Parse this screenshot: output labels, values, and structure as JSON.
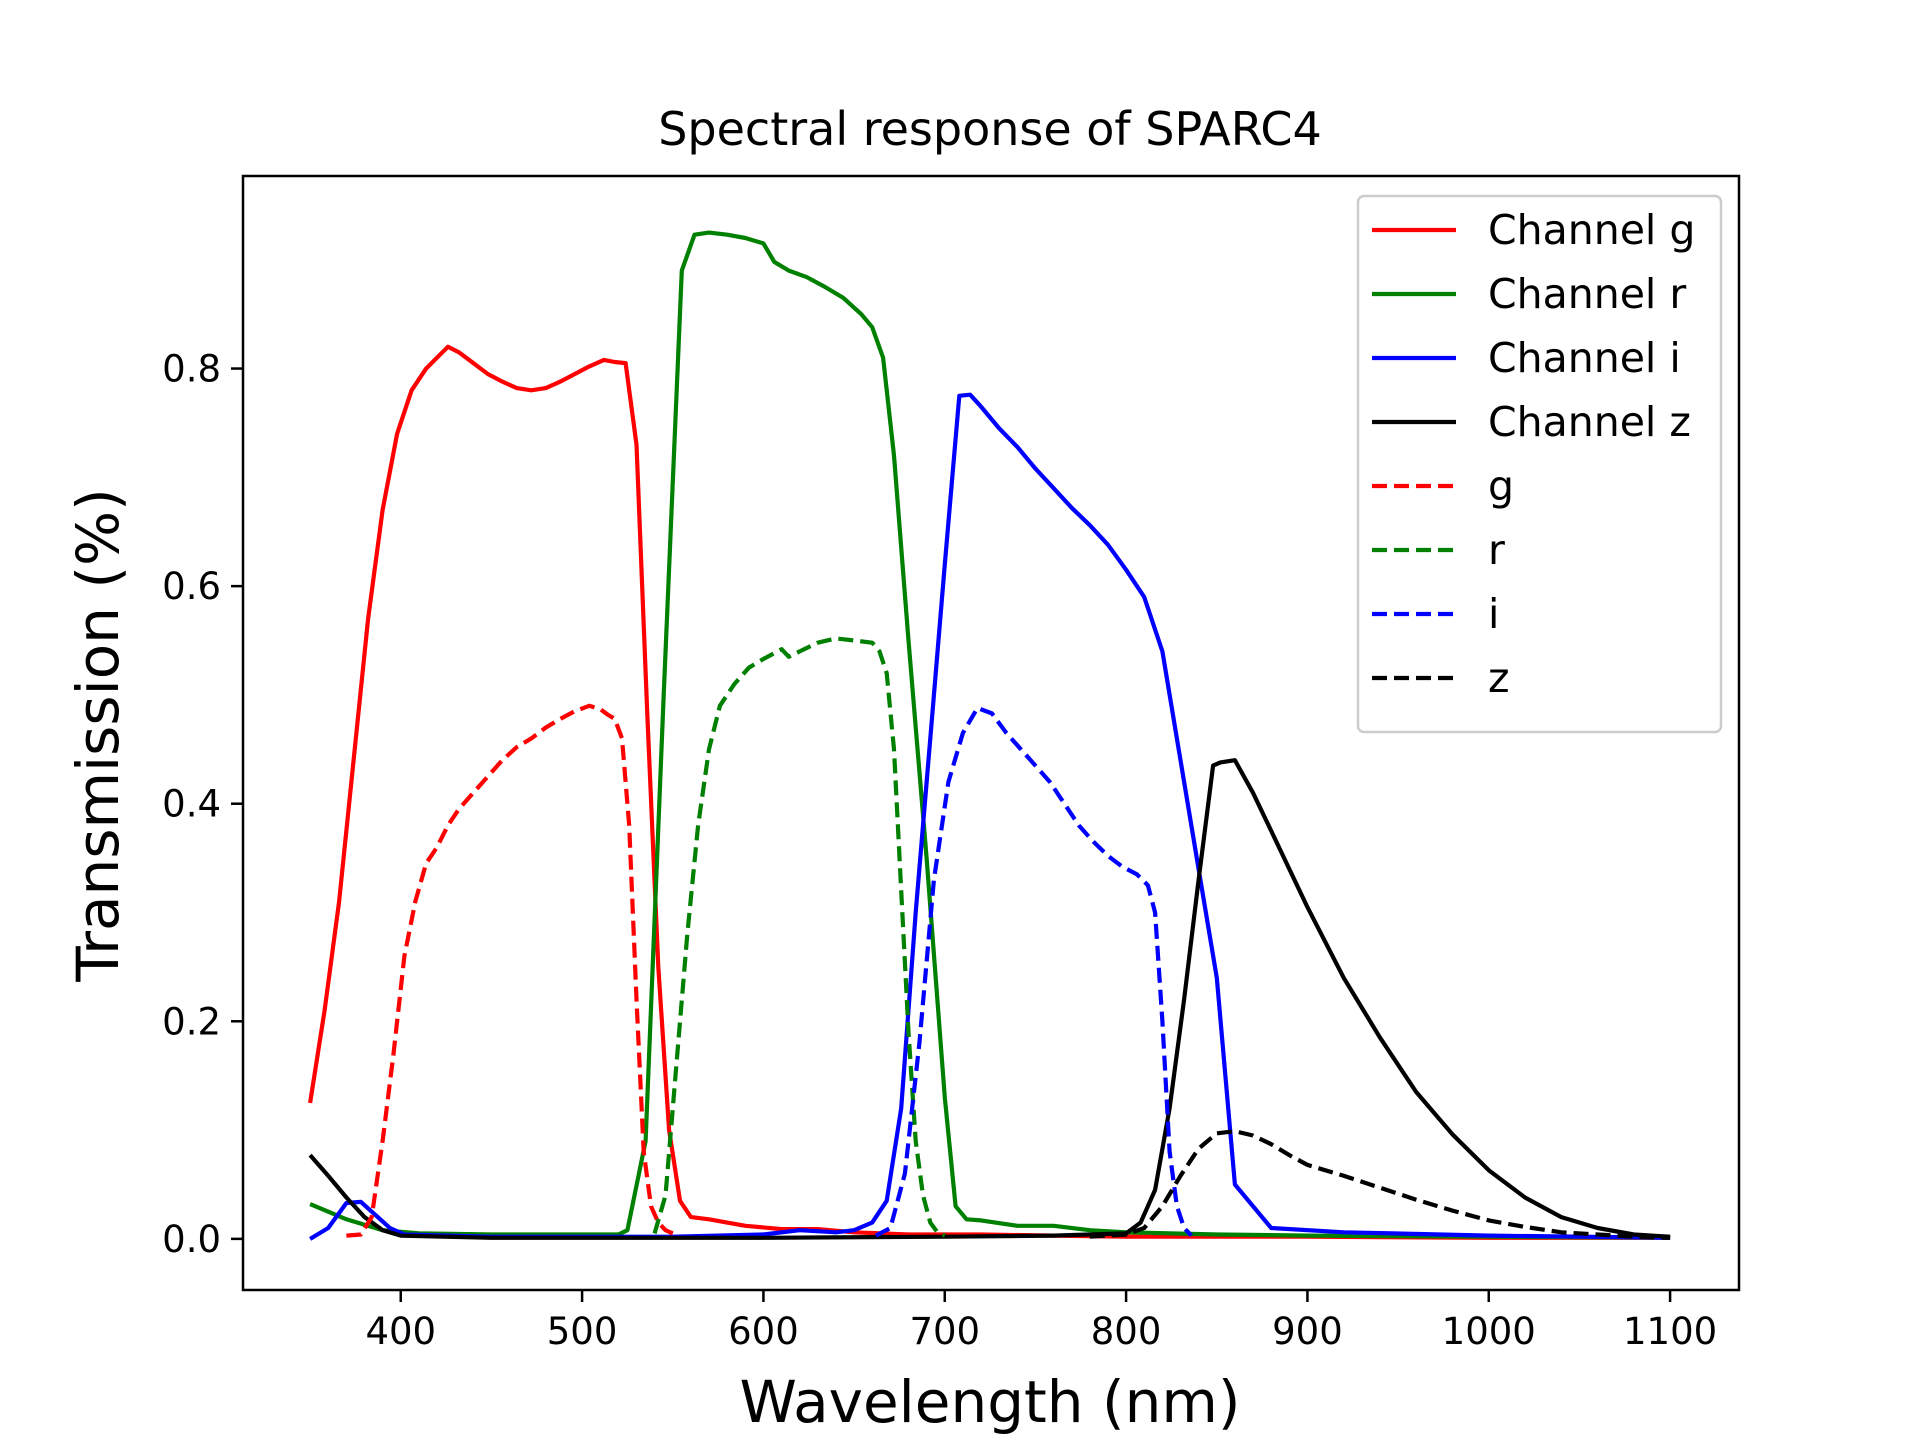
{
  "chart_data": {
    "type": "line",
    "title": "Spectral response of SPARC4",
    "xlabel": "Wavelength (nm)",
    "ylabel": "Transmission (%)",
    "xlim": [
      313,
      1138
    ],
    "ylim": [
      -0.047,
      0.977
    ],
    "xticks": [
      400,
      500,
      600,
      700,
      800,
      900,
      1000,
      1100
    ],
    "yticks": [
      0.0,
      0.2,
      0.4,
      0.6,
      0.8
    ],
    "xtick_labels": [
      "400",
      "500",
      "600",
      "700",
      "800",
      "900",
      "1000",
      "1100"
    ],
    "ytick_labels": [
      "0.0",
      "0.2",
      "0.4",
      "0.6",
      "0.8"
    ],
    "grid": false,
    "legend_position": "top-right",
    "series": [
      {
        "name": "Channel g",
        "color": "#ff0000",
        "style": "solid",
        "x": [
          350,
          358,
          366,
          374,
          382,
          390,
          398,
          406,
          414,
          420,
          426,
          432,
          440,
          448,
          456,
          464,
          472,
          480,
          488,
          496,
          504,
          512,
          518,
          524,
          530,
          536,
          542,
          548,
          554,
          560,
          570,
          590,
          610,
          630,
          650,
          680,
          720,
          760,
          800,
          850,
          900,
          1000,
          1100
        ],
        "y": [
          0.125,
          0.21,
          0.31,
          0.44,
          0.57,
          0.67,
          0.74,
          0.78,
          0.8,
          0.81,
          0.82,
          0.815,
          0.805,
          0.795,
          0.788,
          0.782,
          0.78,
          0.782,
          0.788,
          0.795,
          0.802,
          0.808,
          0.806,
          0.805,
          0.73,
          0.48,
          0.25,
          0.1,
          0.035,
          0.02,
          0.018,
          0.012,
          0.009,
          0.009,
          0.006,
          0.004,
          0.004,
          0.003,
          0.002,
          0.002,
          0.002,
          0.001,
          0.001
        ]
      },
      {
        "name": "Channel r",
        "color": "#008000",
        "style": "solid",
        "x": [
          350,
          370,
          390,
          410,
          450,
          500,
          520,
          525,
          535,
          545,
          555,
          562,
          570,
          580,
          590,
          600,
          606,
          614,
          624,
          634,
          644,
          654,
          660,
          666,
          672,
          680,
          690,
          700,
          706,
          712,
          720,
          740,
          760,
          780,
          800,
          850,
          900,
          1000,
          1100
        ],
        "y": [
          0.032,
          0.018,
          0.008,
          0.005,
          0.004,
          0.004,
          0.004,
          0.008,
          0.09,
          0.5,
          0.89,
          0.923,
          0.925,
          0.923,
          0.92,
          0.915,
          0.898,
          0.89,
          0.884,
          0.875,
          0.865,
          0.85,
          0.838,
          0.81,
          0.72,
          0.55,
          0.35,
          0.13,
          0.03,
          0.018,
          0.017,
          0.012,
          0.012,
          0.008,
          0.006,
          0.004,
          0.003,
          0.002,
          0.001
        ]
      },
      {
        "name": "Channel i",
        "color": "#0000ff",
        "style": "solid",
        "x": [
          350,
          360,
          370,
          378,
          386,
          394,
          402,
          450,
          500,
          550,
          600,
          620,
          640,
          650,
          660,
          668,
          676,
          684,
          692,
          700,
          708,
          714,
          720,
          730,
          740,
          750,
          760,
          770,
          780,
          790,
          800,
          810,
          820,
          830,
          840,
          850,
          860,
          880,
          920,
          1000,
          1100
        ],
        "y": [
          0.0,
          0.01,
          0.033,
          0.034,
          0.022,
          0.01,
          0.004,
          0.002,
          0.002,
          0.002,
          0.004,
          0.008,
          0.006,
          0.008,
          0.015,
          0.035,
          0.12,
          0.3,
          0.46,
          0.62,
          0.775,
          0.776,
          0.765,
          0.745,
          0.728,
          0.708,
          0.69,
          0.672,
          0.656,
          0.638,
          0.615,
          0.59,
          0.54,
          0.44,
          0.34,
          0.24,
          0.05,
          0.01,
          0.006,
          0.003,
          0.001
        ]
      },
      {
        "name": "Channel z",
        "color": "#000000",
        "style": "solid",
        "x": [
          350,
          360,
          370,
          380,
          390,
          400,
          450,
          500,
          600,
          700,
          760,
          800,
          808,
          816,
          824,
          832,
          840,
          848,
          852,
          860,
          870,
          880,
          890,
          900,
          920,
          940,
          960,
          980,
          1000,
          1020,
          1040,
          1060,
          1080,
          1100
        ],
        "y": [
          0.077,
          0.058,
          0.038,
          0.02,
          0.008,
          0.003,
          0.001,
          0.001,
          0.001,
          0.002,
          0.003,
          0.005,
          0.015,
          0.045,
          0.12,
          0.22,
          0.33,
          0.435,
          0.438,
          0.44,
          0.41,
          0.375,
          0.34,
          0.305,
          0.24,
          0.185,
          0.135,
          0.096,
          0.063,
          0.038,
          0.02,
          0.01,
          0.004,
          0.002
        ]
      },
      {
        "name": "g",
        "color": "#ff0000",
        "style": "dashed",
        "x": [
          370,
          378,
          384,
          390,
          396,
          402,
          408,
          414,
          420,
          426,
          432,
          440,
          448,
          456,
          464,
          472,
          480,
          488,
          496,
          504,
          510,
          514,
          518,
          522,
          526,
          530,
          534,
          538,
          542,
          546,
          550
        ],
        "y": [
          0.003,
          0.004,
          0.02,
          0.09,
          0.17,
          0.26,
          0.31,
          0.345,
          0.36,
          0.38,
          0.395,
          0.41,
          0.425,
          0.44,
          0.452,
          0.46,
          0.47,
          0.478,
          0.485,
          0.49,
          0.487,
          0.482,
          0.478,
          0.46,
          0.38,
          0.22,
          0.08,
          0.03,
          0.015,
          0.008,
          0.005
        ]
      },
      {
        "name": "r",
        "color": "#008000",
        "style": "dashed",
        "x": [
          540,
          546,
          552,
          558,
          564,
          570,
          576,
          584,
          592,
          600,
          610,
          614,
          620,
          630,
          640,
          650,
          660,
          664,
          668,
          672,
          676,
          680,
          684,
          688,
          692,
          696,
          700
        ],
        "y": [
          0.005,
          0.04,
          0.16,
          0.28,
          0.38,
          0.45,
          0.49,
          0.51,
          0.525,
          0.533,
          0.542,
          0.535,
          0.54,
          0.548,
          0.552,
          0.55,
          0.548,
          0.54,
          0.52,
          0.45,
          0.32,
          0.19,
          0.09,
          0.04,
          0.015,
          0.006,
          0.003
        ]
      },
      {
        "name": "i",
        "color": "#0000ff",
        "style": "dashed",
        "x": [
          662,
          670,
          678,
          686,
          694,
          702,
          710,
          718,
          726,
          734,
          742,
          750,
          758,
          766,
          774,
          782,
          790,
          798,
          806,
          812,
          816,
          820,
          824,
          828,
          832,
          836
        ],
        "y": [
          0.003,
          0.01,
          0.06,
          0.18,
          0.33,
          0.42,
          0.465,
          0.488,
          0.483,
          0.465,
          0.45,
          0.435,
          0.42,
          0.4,
          0.38,
          0.365,
          0.352,
          0.342,
          0.335,
          0.325,
          0.3,
          0.2,
          0.08,
          0.03,
          0.01,
          0.003
        ]
      },
      {
        "name": "z",
        "color": "#000000",
        "style": "dashed",
        "x": [
          780,
          800,
          810,
          820,
          830,
          840,
          850,
          860,
          870,
          880,
          890,
          900,
          920,
          940,
          960,
          980,
          1000,
          1020,
          1040,
          1060,
          1080,
          1100
        ],
        "y": [
          0.002,
          0.004,
          0.01,
          0.03,
          0.058,
          0.083,
          0.097,
          0.099,
          0.095,
          0.087,
          0.077,
          0.068,
          0.058,
          0.047,
          0.036,
          0.026,
          0.017,
          0.011,
          0.006,
          0.004,
          0.002,
          0.001
        ]
      }
    ]
  }
}
